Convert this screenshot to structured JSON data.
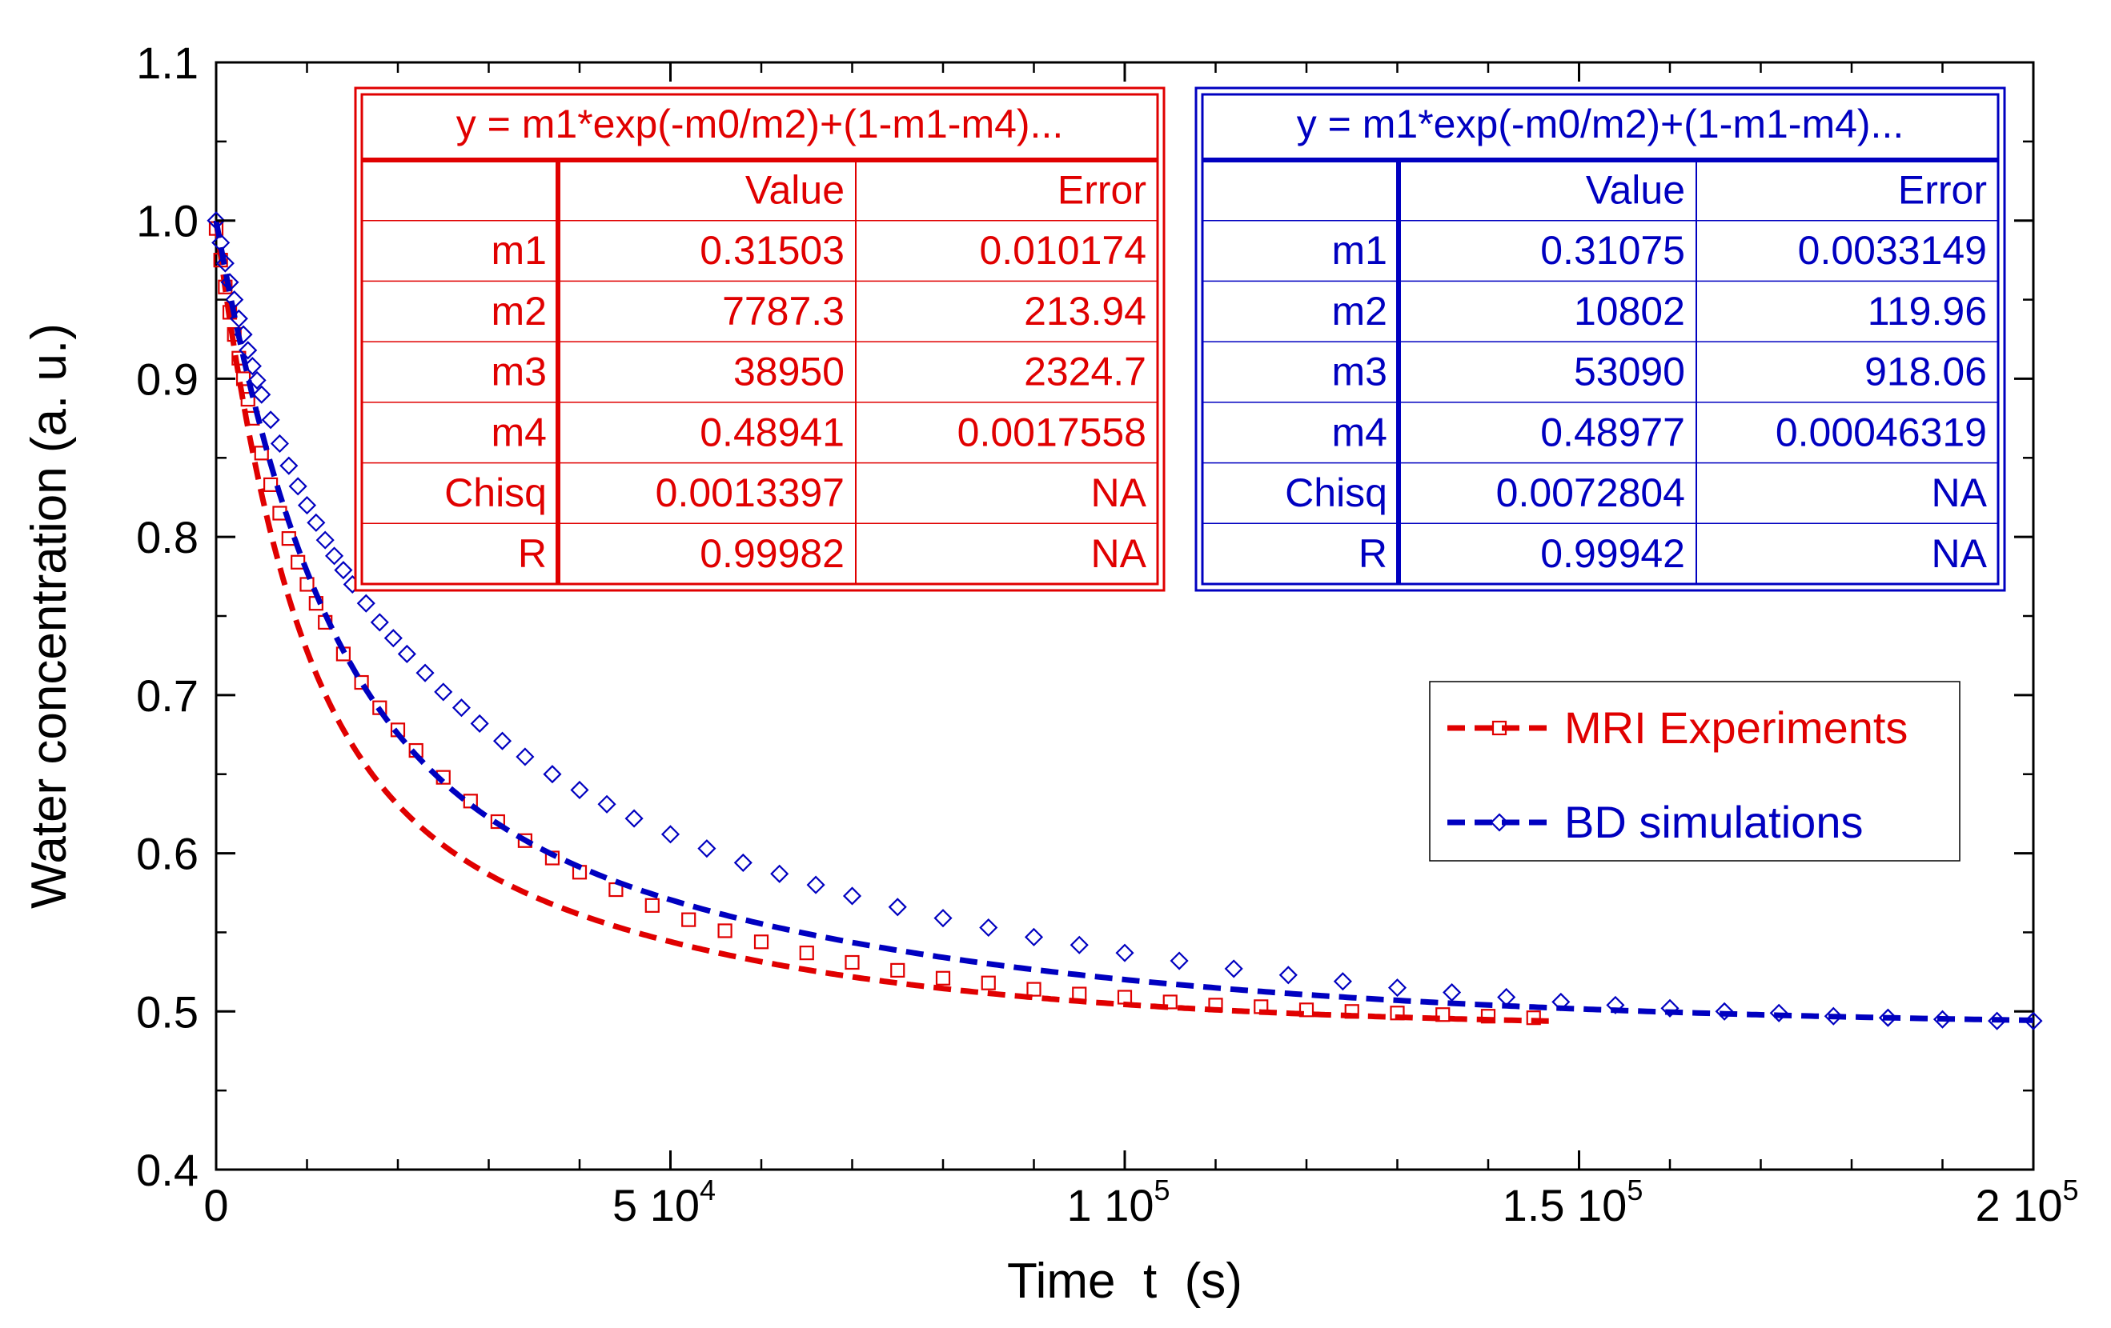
{
  "chart_data": {
    "type": "scatter",
    "xlabel": "Time  t  (s)",
    "ylabel": "Water concentration (a. u.)",
    "xlim": [
      0,
      200000
    ],
    "ylim": [
      0.4,
      1.1
    ],
    "x_ticks": [
      {
        "value": 0,
        "mant": "0",
        "exp": ""
      },
      {
        "value": 50000,
        "mant": "5 10",
        "exp": "4"
      },
      {
        "value": 100000,
        "mant": "1 10",
        "exp": "5"
      },
      {
        "value": 150000,
        "mant": "1.5 10",
        "exp": "5"
      },
      {
        "value": 200000,
        "mant": "2 10",
        "exp": "5"
      }
    ],
    "y_ticks": [
      "0.4",
      "0.5",
      "0.6",
      "0.7",
      "0.8",
      "0.9",
      "1.0",
      "1.1"
    ],
    "series": [
      {
        "name": "MRI Experiments",
        "color": "#e00000",
        "marker": "square",
        "line_style": "dashed",
        "fit": {
          "m1": 0.31503,
          "m2": 7787.3,
          "m3": 38950,
          "m4": 0.48941
        },
        "x_start": 0,
        "x_end": 147000,
        "points": [
          [
            0,
            0.995
          ],
          [
            500,
            0.975
          ],
          [
            1000,
            0.958
          ],
          [
            1500,
            0.942
          ],
          [
            2000,
            0.928
          ],
          [
            2500,
            0.913
          ],
          [
            3000,
            0.9
          ],
          [
            3500,
            0.887
          ],
          [
            4000,
            0.875
          ],
          [
            5000,
            0.853
          ],
          [
            6000,
            0.833
          ],
          [
            7000,
            0.815
          ],
          [
            8000,
            0.799
          ],
          [
            9000,
            0.784
          ],
          [
            10000,
            0.77
          ],
          [
            11000,
            0.758
          ],
          [
            12000,
            0.746
          ],
          [
            14000,
            0.726
          ],
          [
            16000,
            0.708
          ],
          [
            18000,
            0.692
          ],
          [
            20000,
            0.678
          ],
          [
            22000,
            0.665
          ],
          [
            25000,
            0.648
          ],
          [
            28000,
            0.633
          ],
          [
            31000,
            0.62
          ],
          [
            34000,
            0.608
          ],
          [
            37000,
            0.597
          ],
          [
            40000,
            0.588
          ],
          [
            44000,
            0.577
          ],
          [
            48000,
            0.567
          ],
          [
            52000,
            0.558
          ],
          [
            56000,
            0.551
          ],
          [
            60000,
            0.544
          ],
          [
            65000,
            0.537
          ],
          [
            70000,
            0.531
          ],
          [
            75000,
            0.526
          ],
          [
            80000,
            0.521
          ],
          [
            85000,
            0.518
          ],
          [
            90000,
            0.514
          ],
          [
            95000,
            0.511
          ],
          [
            100000,
            0.509
          ],
          [
            105000,
            0.506
          ],
          [
            110000,
            0.504
          ],
          [
            115000,
            0.503
          ],
          [
            120000,
            0.501
          ],
          [
            125000,
            0.5
          ],
          [
            130000,
            0.499
          ],
          [
            135000,
            0.498
          ],
          [
            140000,
            0.497
          ],
          [
            145000,
            0.496
          ]
        ]
      },
      {
        "name": "BD simulations",
        "color": "#0000c0",
        "marker": "diamond",
        "line_style": "dashed",
        "fit": {
          "m1": 0.31075,
          "m2": 10802,
          "m3": 53090,
          "m4": 0.48977
        },
        "x_start": 0,
        "x_end": 200000,
        "points": [
          [
            0,
            1.0
          ],
          [
            500,
            0.986
          ],
          [
            1000,
            0.973
          ],
          [
            1500,
            0.961
          ],
          [
            2000,
            0.95
          ],
          [
            2500,
            0.938
          ],
          [
            3000,
            0.928
          ],
          [
            3500,
            0.918
          ],
          [
            4000,
            0.908
          ],
          [
            4500,
            0.899
          ],
          [
            5000,
            0.89
          ],
          [
            6000,
            0.874
          ],
          [
            7000,
            0.859
          ],
          [
            8000,
            0.845
          ],
          [
            9000,
            0.832
          ],
          [
            10000,
            0.82
          ],
          [
            11000,
            0.809
          ],
          [
            12000,
            0.798
          ],
          [
            13000,
            0.788
          ],
          [
            14000,
            0.779
          ],
          [
            15000,
            0.77
          ],
          [
            16500,
            0.758
          ],
          [
            18000,
            0.746
          ],
          [
            19500,
            0.736
          ],
          [
            21000,
            0.726
          ],
          [
            23000,
            0.714
          ],
          [
            25000,
            0.702
          ],
          [
            27000,
            0.692
          ],
          [
            29000,
            0.682
          ],
          [
            31500,
            0.671
          ],
          [
            34000,
            0.661
          ],
          [
            37000,
            0.65
          ],
          [
            40000,
            0.64
          ],
          [
            43000,
            0.631
          ],
          [
            46000,
            0.622
          ],
          [
            50000,
            0.612
          ],
          [
            54000,
            0.603
          ],
          [
            58000,
            0.594
          ],
          [
            62000,
            0.587
          ],
          [
            66000,
            0.58
          ],
          [
            70000,
            0.573
          ],
          [
            75000,
            0.566
          ],
          [
            80000,
            0.559
          ],
          [
            85000,
            0.553
          ],
          [
            90000,
            0.547
          ],
          [
            95000,
            0.542
          ],
          [
            100000,
            0.537
          ],
          [
            106000,
            0.532
          ],
          [
            112000,
            0.527
          ],
          [
            118000,
            0.523
          ],
          [
            124000,
            0.519
          ],
          [
            130000,
            0.515
          ],
          [
            136000,
            0.512
          ],
          [
            142000,
            0.509
          ],
          [
            148000,
            0.506
          ],
          [
            154000,
            0.504
          ],
          [
            160000,
            0.502
          ],
          [
            166000,
            0.5
          ],
          [
            172000,
            0.499
          ],
          [
            178000,
            0.497
          ],
          [
            184000,
            0.496
          ],
          [
            190000,
            0.495
          ],
          [
            196000,
            0.494
          ],
          [
            200000,
            0.494
          ]
        ]
      }
    ],
    "legend_position": "right-middle",
    "fit_tables": [
      {
        "series": "MRI Experiments",
        "color": "#e00000",
        "equation": "y = m1*exp(-m0/m2)+(1-m1-m4)...",
        "header": [
          "",
          "Value",
          "Error"
        ],
        "rows": [
          [
            "m1",
            "0.31503",
            "0.010174"
          ],
          [
            "m2",
            "7787.3",
            "213.94"
          ],
          [
            "m3",
            "38950",
            "2324.7"
          ],
          [
            "m4",
            "0.48941",
            "0.0017558"
          ],
          [
            "Chisq",
            "0.0013397",
            "NA"
          ],
          [
            "R",
            "0.99982",
            "NA"
          ]
        ]
      },
      {
        "series": "BD simulations",
        "color": "#0000c0",
        "equation": "y = m1*exp(-m0/m2)+(1-m1-m4)...",
        "header": [
          "",
          "Value",
          "Error"
        ],
        "rows": [
          [
            "m1",
            "0.31075",
            "0.0033149"
          ],
          [
            "m2",
            "10802",
            "119.96"
          ],
          [
            "m3",
            "53090",
            "918.06"
          ],
          [
            "m4",
            "0.48977",
            "0.00046319"
          ],
          [
            "Chisq",
            "0.0072804",
            "NA"
          ],
          [
            "R",
            "0.99942",
            "NA"
          ]
        ]
      }
    ]
  }
}
